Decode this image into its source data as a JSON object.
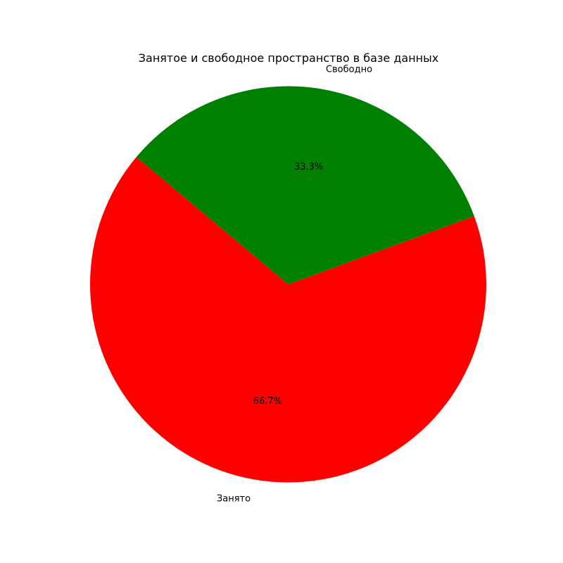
{
  "chart_data": {
    "type": "pie",
    "title": "Занятое и свободное пространство в базе данных",
    "slices": [
      {
        "label": "Занято",
        "value": 66.7,
        "pct_label": "66.7%",
        "color": "#ff0000"
      },
      {
        "label": "Свободно",
        "value": 33.3,
        "pct_label": "33.3%",
        "color": "#008000"
      }
    ]
  }
}
